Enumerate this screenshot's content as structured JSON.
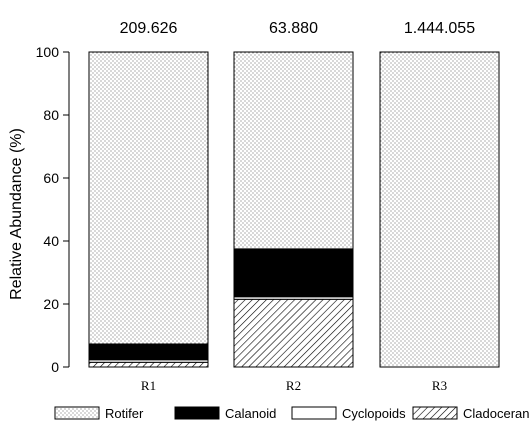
{
  "chart_data": {
    "type": "bar",
    "stacked": true,
    "title": "",
    "xlabel": "",
    "ylabel": "Relative Abundance (%)",
    "ylim": [
      0,
      100
    ],
    "yticks": [
      0,
      20,
      40,
      60,
      80,
      100
    ],
    "categories": [
      "R1",
      "R2",
      "R3"
    ],
    "top_labels": [
      "209.626",
      "63.880",
      "1.444.055"
    ],
    "series": [
      {
        "name": "Cladoceran",
        "pattern": "diagonal-hatch",
        "values": [
          1.5,
          21.5,
          0.0
        ]
      },
      {
        "name": "Cyclopoids",
        "pattern": "white",
        "values": [
          0.8,
          0.8,
          0.0
        ]
      },
      {
        "name": "Calanoid",
        "pattern": "solid-black",
        "values": [
          5.0,
          15.2,
          0.0
        ]
      },
      {
        "name": "Rotifer",
        "pattern": "dots",
        "values": [
          92.7,
          62.5,
          100.0
        ]
      }
    ],
    "legend": {
      "position": "bottom",
      "order": [
        "Rotifer",
        "Calanoid",
        "Cyclopoids",
        "Cladoceran"
      ]
    },
    "grid": false,
    "colors": {
      "axis": "#000000",
      "bar_outline": "#000000",
      "solid": "#000000",
      "background": "#ffffff"
    }
  }
}
